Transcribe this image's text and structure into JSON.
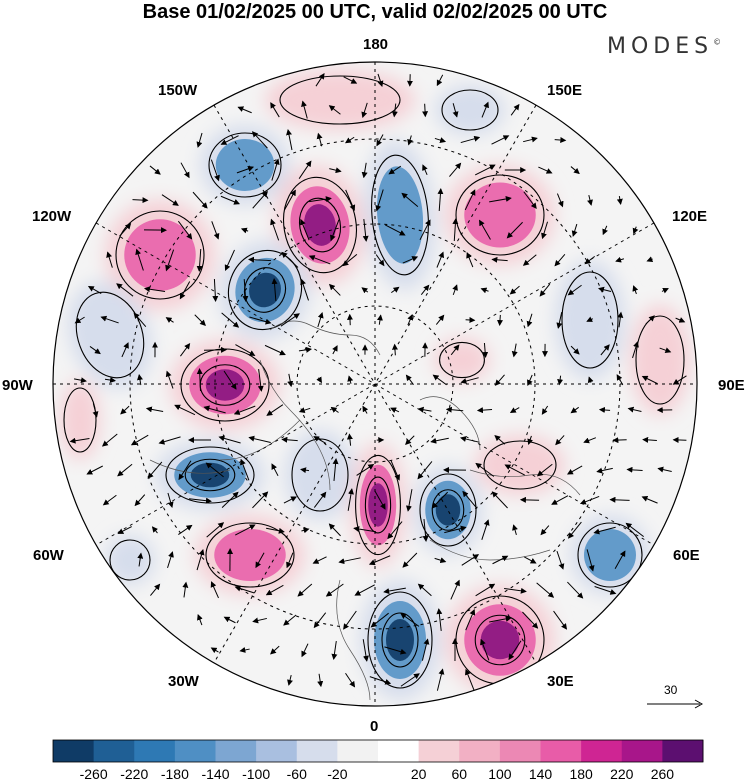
{
  "header": {
    "title": "Base 01/02/2025 00 UTC, valid 02/02/2025 00 UTC",
    "logo": "MODES",
    "logo_mark": "©"
  },
  "map": {
    "projection": "north-polar-stereographic",
    "longitude_labels": {
      "top": "180",
      "top_left": "150W",
      "top_right": "150E",
      "upper_left": "120W",
      "upper_right": "120E",
      "left": "90W",
      "right": "90E",
      "lower_left": "60W",
      "lower_right": "60E",
      "bottom_left": "30W",
      "bottom_right": "30E",
      "bottom": "0"
    },
    "reference_vector": "30",
    "colors": {
      "strong_negative": "#0f3b66",
      "negative": "#4f8fc4",
      "weak_negative": "#d6ddec",
      "neutral": "#ffffff",
      "weak_positive": "#f5d0d6",
      "positive": "#e85ca8",
      "strong_positive": "#8a1480"
    }
  },
  "colorbar": {
    "colors": [
      "#0f3b66",
      "#1f5f95",
      "#2e79b4",
      "#4f8fc4",
      "#7da6d2",
      "#a9bfe0",
      "#d6ddec",
      "#f2f2f2",
      "#ffffff",
      "#f5d0d6",
      "#f2b0c4",
      "#ec88b4",
      "#e85ca8",
      "#cf2593",
      "#a8168a",
      "#5c0f70"
    ],
    "labels": [
      "-260",
      "-220",
      "-180",
      "-140",
      "-100",
      "-60",
      "-20",
      "20",
      "60",
      "100",
      "140",
      "180",
      "220",
      "260"
    ]
  }
}
